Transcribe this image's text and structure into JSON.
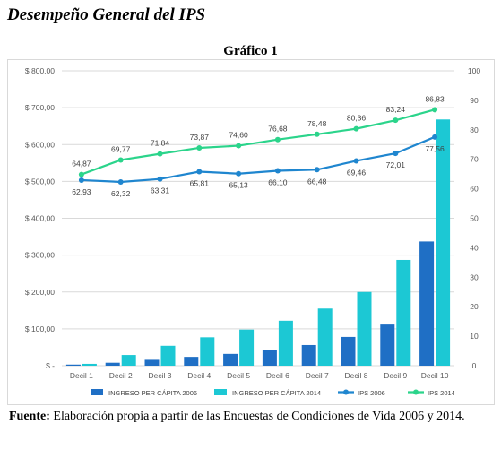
{
  "page_title": "Desempeño General del IPS",
  "chart_heading": "Gráfico 1",
  "source": {
    "label": "Fuente:",
    "text": "Elaboración propia a partir de las Encuestas de Condiciones de Vida 2006 y 2014."
  },
  "colors": {
    "bar_2006": "#1f6fc5",
    "bar_2014": "#1cc8d4",
    "line_2006": "#1f86cf",
    "line_2014": "#2bd48b",
    "grid": "#d9d9d9",
    "axis_text": "#595959"
  },
  "chart_data": {
    "type": "bar+line",
    "title": "",
    "categories": [
      "Decil 1",
      "Decil 2",
      "Decil 3",
      "Decil 4",
      "Decil 5",
      "Decil 6",
      "Decil 7",
      "Decil 8",
      "Decil 9",
      "Decil 10"
    ],
    "y_left": {
      "ticks": [
        "$ -",
        "$ 100,00",
        "$ 200,00",
        "$ 300,00",
        "$ 400,00",
        "$ 500,00",
        "$ 600,00",
        "$ 700,00",
        "$ 800,00"
      ],
      "min": 0,
      "max": 800,
      "step": 100
    },
    "y_right": {
      "ticks": [
        "0",
        "10",
        "20",
        "30",
        "40",
        "50",
        "60",
        "70",
        "80",
        "90",
        "100"
      ],
      "min": 0,
      "max": 100,
      "step": 10
    },
    "grid": true,
    "legend_position": "bottom",
    "series": [
      {
        "name": "INGRESO PER CÁPITA 2006",
        "kind": "bar",
        "axis": "left",
        "color": "#1f6fc5",
        "values": [
          3,
          8,
          16,
          24,
          32,
          43,
          56,
          78,
          114,
          337
        ]
      },
      {
        "name": "INGRESO PER CÁPITA 2014",
        "kind": "bar",
        "axis": "left",
        "color": "#1cc8d4",
        "values": [
          5,
          29,
          54,
          77,
          98,
          122,
          155,
          200,
          287,
          668
        ]
      },
      {
        "name": "IPS 2006",
        "kind": "line",
        "axis": "right",
        "color": "#1f86cf",
        "values": [
          62.93,
          62.32,
          63.31,
          65.81,
          65.13,
          66.1,
          66.48,
          69.46,
          72.01,
          77.56
        ],
        "labels": [
          "62,93",
          "62,32",
          "63,31",
          "65,81",
          "65,13",
          "66,10",
          "66,48",
          "69,46",
          "72,01",
          "77,56"
        ]
      },
      {
        "name": "IPS 2014",
        "kind": "line",
        "axis": "right",
        "color": "#2bd48b",
        "values": [
          64.87,
          69.77,
          71.84,
          73.87,
          74.6,
          76.68,
          78.48,
          80.36,
          83.24,
          86.83
        ],
        "labels": [
          "64,87",
          "69,77",
          "71,84",
          "73,87",
          "74,60",
          "76,68",
          "78,48",
          "80,36",
          "83,24",
          "86,83"
        ]
      }
    ]
  }
}
